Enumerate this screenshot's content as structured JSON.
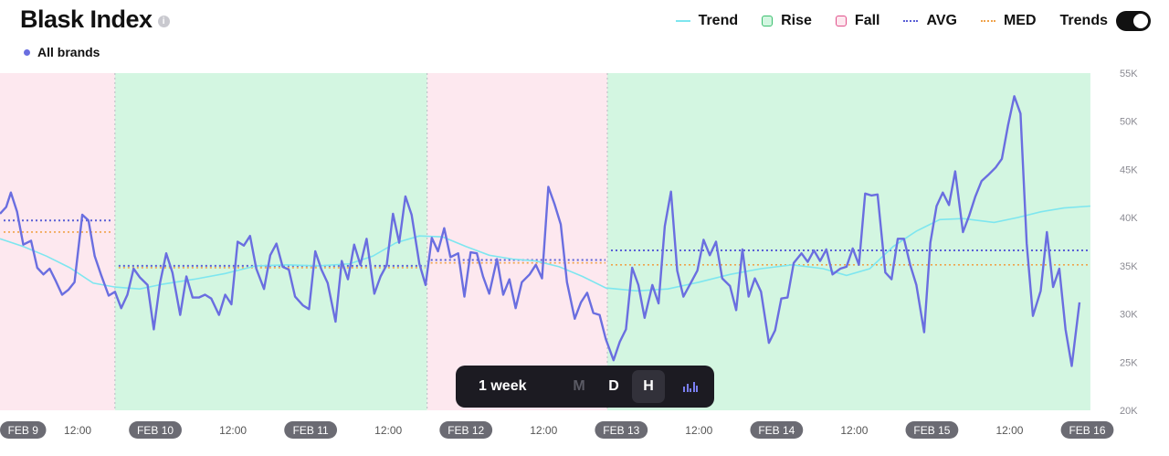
{
  "header": {
    "title": "Blask Index",
    "info_icon": "info-icon",
    "brand_label": "All brands",
    "brand_color": "#6a6ee0"
  },
  "legend": {
    "trend": "Trend",
    "rise": "Rise",
    "fall": "Fall",
    "avg": "AVG",
    "med": "MED",
    "trends_toggle": "Trends",
    "trends_on": true
  },
  "toolbar": {
    "range": "1 week",
    "buttons": [
      "M",
      "D",
      "H"
    ],
    "active": "H",
    "chart_icon": "bar-chart-icon"
  },
  "colors": {
    "series": "#6a6ee0",
    "trend": "#7ee6ef",
    "rise_fill": "#d3f6e1",
    "fall_fill": "#fde8ef",
    "avg": "#5a5fd6",
    "med": "#f0a24a"
  },
  "chart_data": {
    "type": "line",
    "title": "Blask Index",
    "ylim": [
      20000,
      55000
    ],
    "yticks": [
      20000,
      25000,
      30000,
      35000,
      40000,
      45000,
      50000,
      55000
    ],
    "ytick_labels": [
      "20K",
      "25K",
      "30K",
      "35K",
      "40K",
      "45K",
      "50K",
      "55K"
    ],
    "xlim": [
      0,
      7.05
    ],
    "x_unit": "days from Feb 9 00:00",
    "xticks": [
      {
        "x": 0,
        "label": "FEB 9",
        "day": true
      },
      {
        "x": 0.5,
        "label": "12:00",
        "day": false
      },
      {
        "x": 1,
        "label": "FEB 10",
        "day": true
      },
      {
        "x": 1.5,
        "label": "12:00",
        "day": false
      },
      {
        "x": 2,
        "label": "FEB 11",
        "day": true
      },
      {
        "x": 2.5,
        "label": "12:00",
        "day": false
      },
      {
        "x": 3,
        "label": "FEB 12",
        "day": true
      },
      {
        "x": 3.5,
        "label": "12:00",
        "day": false
      },
      {
        "x": 4,
        "label": "FEB 13",
        "day": true
      },
      {
        "x": 4.5,
        "label": "12:00",
        "day": false
      },
      {
        "x": 5,
        "label": "FEB 14",
        "day": true
      },
      {
        "x": 5.5,
        "label": "12:00",
        "day": false
      },
      {
        "x": 6,
        "label": "FEB 15",
        "day": true
      },
      {
        "x": 6.5,
        "label": "12:00",
        "day": false
      },
      {
        "x": 7,
        "label": "FEB 16",
        "day": true
      }
    ],
    "periods": [
      {
        "type": "fall",
        "x0": 0,
        "x1": 0.74,
        "avg": 39700,
        "med": 38500
      },
      {
        "type": "rise",
        "x0": 0.74,
        "x1": 2.75,
        "avg": 35000,
        "med": 34800
      },
      {
        "type": "fall",
        "x0": 2.75,
        "x1": 3.91,
        "avg": 35600,
        "med": 35300
      },
      {
        "type": "rise",
        "x0": 3.91,
        "x1": 7.02,
        "avg": 36600,
        "med": 35100
      }
    ],
    "series": [
      {
        "name": "All brands",
        "points": [
          [
            0.0,
            40400
          ],
          [
            0.04,
            41100
          ],
          [
            0.07,
            42600
          ],
          [
            0.11,
            40600
          ],
          [
            0.15,
            37200
          ],
          [
            0.2,
            37600
          ],
          [
            0.24,
            34800
          ],
          [
            0.28,
            34100
          ],
          [
            0.32,
            34700
          ],
          [
            0.36,
            33400
          ],
          [
            0.4,
            32000
          ],
          [
            0.44,
            32500
          ],
          [
            0.48,
            33300
          ],
          [
            0.53,
            40300
          ],
          [
            0.57,
            39700
          ],
          [
            0.61,
            36000
          ],
          [
            0.65,
            34100
          ],
          [
            0.7,
            31900
          ],
          [
            0.74,
            32300
          ],
          [
            0.78,
            30600
          ],
          [
            0.82,
            32000
          ],
          [
            0.86,
            34700
          ],
          [
            0.9,
            33800
          ],
          [
            0.95,
            33000
          ],
          [
            0.99,
            28400
          ],
          [
            1.03,
            33200
          ],
          [
            1.07,
            36300
          ],
          [
            1.11,
            34300
          ],
          [
            1.16,
            29900
          ],
          [
            1.2,
            33900
          ],
          [
            1.24,
            31700
          ],
          [
            1.28,
            31700
          ],
          [
            1.32,
            32000
          ],
          [
            1.36,
            31600
          ],
          [
            1.41,
            29900
          ],
          [
            1.45,
            32000
          ],
          [
            1.49,
            31000
          ],
          [
            1.53,
            37500
          ],
          [
            1.57,
            37100
          ],
          [
            1.61,
            38100
          ],
          [
            1.65,
            34700
          ],
          [
            1.7,
            32600
          ],
          [
            1.74,
            36100
          ],
          [
            1.78,
            37300
          ],
          [
            1.82,
            34900
          ],
          [
            1.86,
            34600
          ],
          [
            1.9,
            31800
          ],
          [
            1.95,
            30900
          ],
          [
            1.99,
            30500
          ],
          [
            2.03,
            36500
          ],
          [
            2.07,
            34600
          ],
          [
            2.11,
            33200
          ],
          [
            2.16,
            29200
          ],
          [
            2.2,
            35500
          ],
          [
            2.24,
            33600
          ],
          [
            2.28,
            37200
          ],
          [
            2.32,
            35100
          ],
          [
            2.36,
            37800
          ],
          [
            2.41,
            32100
          ],
          [
            2.45,
            33900
          ],
          [
            2.49,
            35100
          ],
          [
            2.53,
            40400
          ],
          [
            2.57,
            37400
          ],
          [
            2.61,
            42200
          ],
          [
            2.65,
            40300
          ],
          [
            2.7,
            35200
          ],
          [
            2.74,
            33000
          ],
          [
            2.78,
            37900
          ],
          [
            2.82,
            36500
          ],
          [
            2.86,
            38900
          ],
          [
            2.9,
            35900
          ],
          [
            2.95,
            36300
          ],
          [
            2.99,
            31800
          ],
          [
            3.03,
            36400
          ],
          [
            3.07,
            36300
          ],
          [
            3.11,
            33900
          ],
          [
            3.15,
            32100
          ],
          [
            3.2,
            35700
          ],
          [
            3.24,
            32000
          ],
          [
            3.28,
            33600
          ],
          [
            3.32,
            30600
          ],
          [
            3.36,
            33300
          ],
          [
            3.41,
            34100
          ],
          [
            3.45,
            35100
          ],
          [
            3.49,
            33700
          ],
          [
            3.53,
            43200
          ],
          [
            3.57,
            41400
          ],
          [
            3.61,
            39300
          ],
          [
            3.65,
            33300
          ],
          [
            3.7,
            29500
          ],
          [
            3.74,
            31200
          ],
          [
            3.78,
            32200
          ],
          [
            3.82,
            30100
          ],
          [
            3.86,
            29900
          ],
          [
            3.9,
            27400
          ],
          [
            3.95,
            25200
          ],
          [
            3.99,
            27100
          ],
          [
            4.03,
            28400
          ],
          [
            4.07,
            34800
          ],
          [
            4.11,
            33000
          ],
          [
            4.15,
            29600
          ],
          [
            4.2,
            33000
          ],
          [
            4.24,
            31100
          ],
          [
            4.28,
            39100
          ],
          [
            4.32,
            42700
          ],
          [
            4.36,
            34500
          ],
          [
            4.4,
            31800
          ],
          [
            4.45,
            33300
          ],
          [
            4.49,
            34500
          ],
          [
            4.53,
            37700
          ],
          [
            4.57,
            36100
          ],
          [
            4.61,
            37500
          ],
          [
            4.65,
            33700
          ],
          [
            4.7,
            32900
          ],
          [
            4.74,
            30400
          ],
          [
            4.78,
            36700
          ],
          [
            4.82,
            31800
          ],
          [
            4.86,
            33700
          ],
          [
            4.9,
            32300
          ],
          [
            4.95,
            27000
          ],
          [
            4.99,
            28300
          ],
          [
            5.03,
            31600
          ],
          [
            5.07,
            31700
          ],
          [
            5.11,
            35300
          ],
          [
            5.16,
            36300
          ],
          [
            5.2,
            35400
          ],
          [
            5.24,
            36600
          ],
          [
            5.28,
            35500
          ],
          [
            5.32,
            36700
          ],
          [
            5.36,
            34100
          ],
          [
            5.41,
            34700
          ],
          [
            5.45,
            34900
          ],
          [
            5.49,
            36800
          ],
          [
            5.53,
            35100
          ],
          [
            5.57,
            42500
          ],
          [
            5.61,
            42300
          ],
          [
            5.65,
            42400
          ],
          [
            5.7,
            34300
          ],
          [
            5.74,
            33600
          ],
          [
            5.78,
            37800
          ],
          [
            5.82,
            37800
          ],
          [
            5.86,
            35100
          ],
          [
            5.9,
            33000
          ],
          [
            5.95,
            28100
          ],
          [
            5.99,
            37400
          ],
          [
            6.03,
            41200
          ],
          [
            6.07,
            42600
          ],
          [
            6.11,
            41300
          ],
          [
            6.15,
            44800
          ],
          [
            6.2,
            38500
          ],
          [
            6.24,
            40200
          ],
          [
            6.28,
            42200
          ],
          [
            6.32,
            43800
          ],
          [
            6.36,
            44400
          ],
          [
            6.41,
            45200
          ],
          [
            6.45,
            46100
          ],
          [
            6.49,
            49600
          ],
          [
            6.53,
            52600
          ],
          [
            6.57,
            50800
          ],
          [
            6.61,
            37300
          ],
          [
            6.65,
            29800
          ],
          [
            6.7,
            32400
          ],
          [
            6.74,
            38500
          ],
          [
            6.78,
            32800
          ],
          [
            6.82,
            34700
          ],
          [
            6.86,
            28400
          ],
          [
            6.9,
            24600
          ],
          [
            6.95,
            31200
          ]
        ]
      },
      {
        "name": "Trend",
        "points": [
          [
            0.0,
            37800
          ],
          [
            0.15,
            37000
          ],
          [
            0.3,
            36000
          ],
          [
            0.45,
            34800
          ],
          [
            0.6,
            33200
          ],
          [
            0.74,
            32800
          ],
          [
            0.9,
            32600
          ],
          [
            1.05,
            33100
          ],
          [
            1.25,
            33600
          ],
          [
            1.45,
            34200
          ],
          [
            1.65,
            35000
          ],
          [
            1.85,
            35100
          ],
          [
            2.05,
            35000
          ],
          [
            2.25,
            35200
          ],
          [
            2.4,
            36000
          ],
          [
            2.55,
            37400
          ],
          [
            2.7,
            38100
          ],
          [
            2.85,
            38000
          ],
          [
            3.0,
            37000
          ],
          [
            3.15,
            36100
          ],
          [
            3.3,
            35700
          ],
          [
            3.45,
            35500
          ],
          [
            3.6,
            34900
          ],
          [
            3.75,
            33900
          ],
          [
            3.9,
            32700
          ],
          [
            4.1,
            32400
          ],
          [
            4.3,
            32600
          ],
          [
            4.5,
            33300
          ],
          [
            4.7,
            34100
          ],
          [
            4.9,
            34700
          ],
          [
            5.1,
            35100
          ],
          [
            5.3,
            34700
          ],
          [
            5.45,
            34000
          ],
          [
            5.6,
            34700
          ],
          [
            5.75,
            37000
          ],
          [
            5.9,
            38600
          ],
          [
            6.05,
            39800
          ],
          [
            6.2,
            39900
          ],
          [
            6.4,
            39500
          ],
          [
            6.55,
            40000
          ],
          [
            6.7,
            40600
          ],
          [
            6.85,
            41000
          ],
          [
            7.02,
            41200
          ]
        ]
      }
    ],
    "grid": false,
    "legend_position": "top-right"
  }
}
